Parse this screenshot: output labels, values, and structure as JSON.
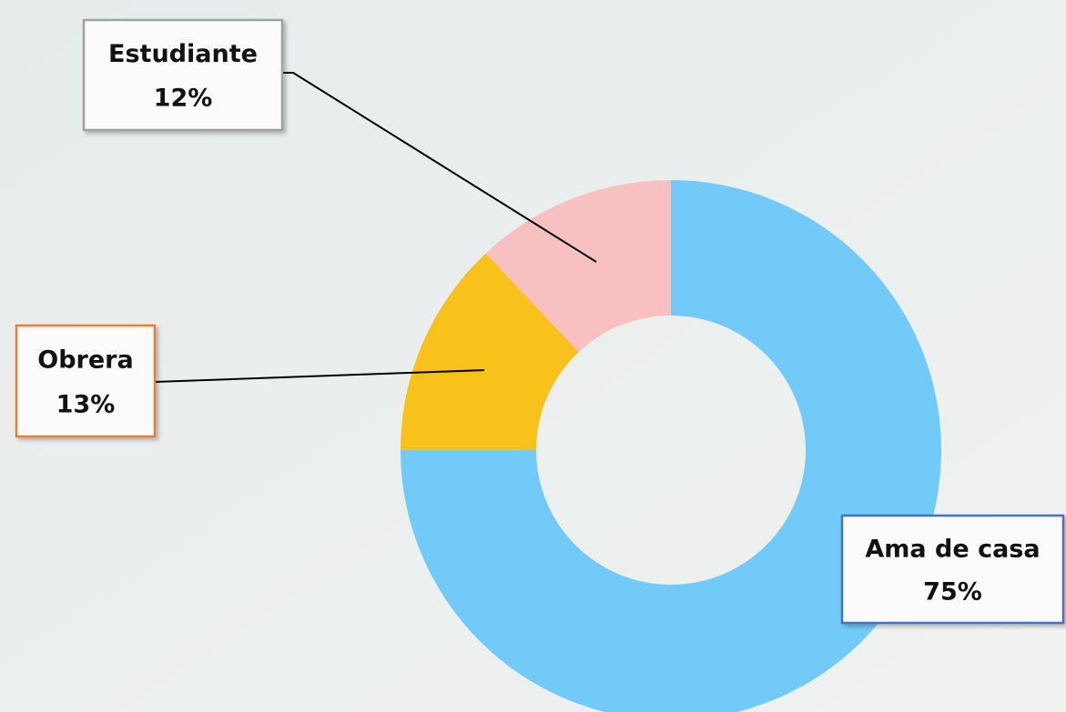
{
  "chart_data": {
    "type": "donut",
    "categories": [
      "Ama de casa",
      "Obrera",
      "Estudiante"
    ],
    "values": [
      75,
      13,
      12
    ],
    "value_labels": [
      "75%",
      "13%",
      "12%"
    ],
    "colors": [
      "#72caf8",
      "#f8c21a",
      "#f8c0c0"
    ]
  }
}
